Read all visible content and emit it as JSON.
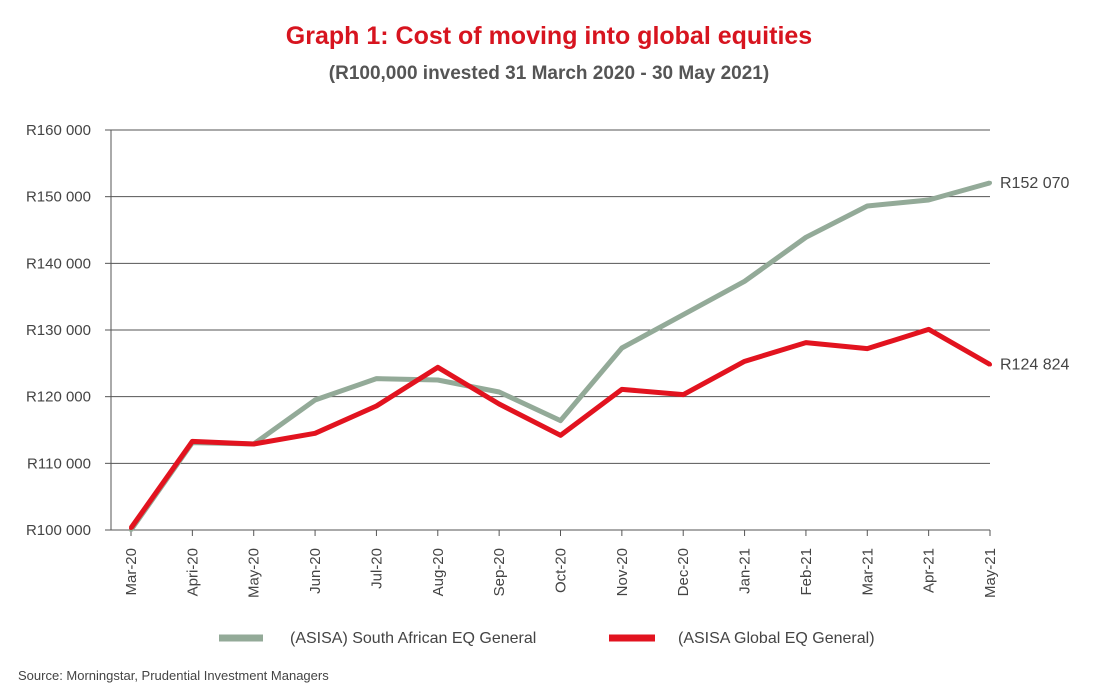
{
  "chart_data": {
    "type": "line",
    "title": "Graph 1: Cost of moving into global equities",
    "subtitle": "(R100,000 invested 31 March 2020 - 30 May 2021)",
    "xlabel": "",
    "ylabel": "",
    "categories": [
      "Mar-20",
      "Apri-20",
      "May-20",
      "Jun-20",
      "Jul-20",
      "Aug-20",
      "Sep-20",
      "Oct-20",
      "Nov-20",
      "Dec-20",
      "Jan-21",
      "Feb-21",
      "Mar-21",
      "Apr-21",
      "May-21"
    ],
    "ylim": [
      100000,
      160000
    ],
    "yticks": [
      100000,
      110000,
      120000,
      130000,
      140000,
      150000,
      160000
    ],
    "ytick_labels": [
      "R100 000",
      "R110 000",
      "R120 000",
      "R130 000",
      "R140 000",
      "R150 000",
      "R160 000"
    ],
    "grid": true,
    "legend_position": "bottom",
    "series": [
      {
        "name": "(ASISA) South African EQ General",
        "color": "#93aa98",
        "values": [
          100000,
          113100,
          112900,
          119500,
          122700,
          122500,
          120700,
          116400,
          127300,
          132300,
          137300,
          143900,
          148600,
          149500,
          152070
        ],
        "end_label": "R152 070"
      },
      {
        "name": "(ASISA Global EQ General)",
        "color": "#e2131f",
        "values": [
          100300,
          113300,
          112900,
          114500,
          118600,
          124400,
          118900,
          114200,
          121100,
          120300,
          125300,
          128100,
          127200,
          130100,
          124824
        ],
        "end_label": "R124 824"
      }
    ],
    "source": "Source: Morningstar, Prudential Investment Managers"
  }
}
